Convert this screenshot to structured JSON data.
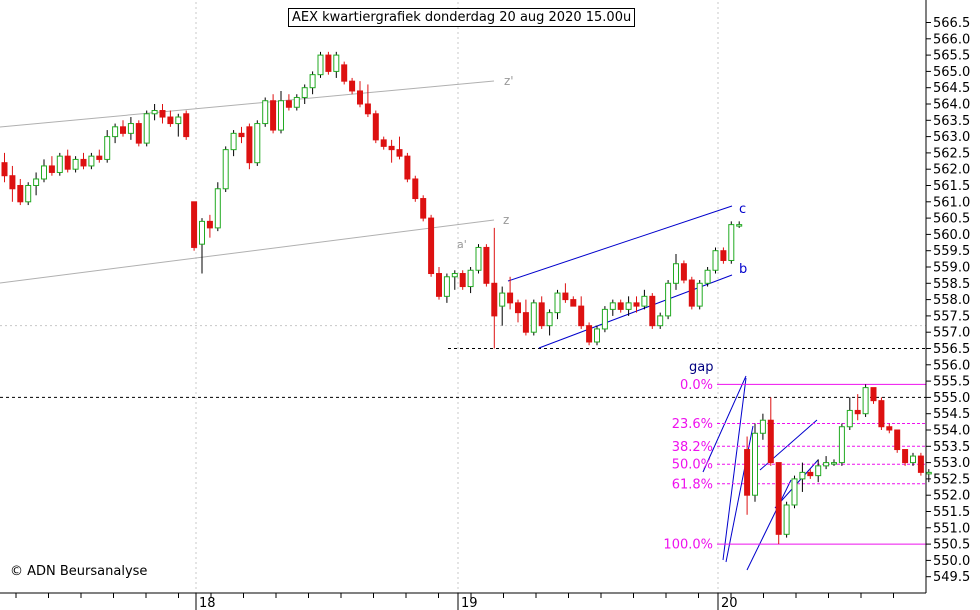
{
  "title": "AEX kwartiergrafiek donderdag 20 aug 2020 15.00u",
  "credit": "© ADN Beursanalyse",
  "colors": {
    "up": "#22aa22",
    "down": "#dd1111",
    "fib": "#ee11ee",
    "channel": "#0000cc",
    "trend": "#b0b0b0"
  },
  "chart_data": {
    "type": "candlestick",
    "title": "AEX kwartiergrafiek donderdag 20 aug 2020 15.00u",
    "y_axis": {
      "side": "right",
      "min": 549.0,
      "max": 567.0,
      "step": 0.5,
      "ticks": [
        "549.5",
        "550.0",
        "550.5",
        "551.0",
        "551.5",
        "552.0",
        "552.5",
        "553.0",
        "553.5",
        "554.0",
        "554.5",
        "555.0",
        "555.5",
        "556.0",
        "556.5",
        "557.0",
        "557.5",
        "558.0",
        "558.5",
        "559.0",
        "559.5",
        "560.0",
        "560.5",
        "561.0",
        "561.5",
        "562.0",
        "562.5",
        "563.0",
        "563.5",
        "564.0",
        "564.5",
        "565.0",
        "565.5",
        "566.0",
        "566.5"
      ]
    },
    "x_axis": {
      "labels": [
        "18",
        "19",
        "20"
      ]
    },
    "grid": true,
    "bars": [
      {
        "o": 562.2,
        "h": 562.5,
        "l": 561.6,
        "c": 561.8
      },
      {
        "o": 561.8,
        "h": 562.1,
        "l": 561.0,
        "c": 561.4
      },
      {
        "o": 561.5,
        "h": 561.7,
        "l": 560.9,
        "c": 561.0
      },
      {
        "o": 561.0,
        "h": 561.6,
        "l": 560.9,
        "c": 561.5
      },
      {
        "o": 561.5,
        "h": 561.9,
        "l": 561.2,
        "c": 561.7
      },
      {
        "o": 561.7,
        "h": 562.3,
        "l": 561.6,
        "c": 562.1
      },
      {
        "o": 562.1,
        "h": 562.4,
        "l": 561.8,
        "c": 561.9
      },
      {
        "o": 561.9,
        "h": 562.5,
        "l": 561.8,
        "c": 562.4
      },
      {
        "o": 562.4,
        "h": 562.6,
        "l": 561.9,
        "c": 562.0
      },
      {
        "o": 562.0,
        "h": 562.4,
        "l": 561.9,
        "c": 562.3
      },
      {
        "o": 562.3,
        "h": 562.5,
        "l": 562.0,
        "c": 562.1
      },
      {
        "o": 562.1,
        "h": 562.5,
        "l": 562.0,
        "c": 562.4
      },
      {
        "o": 562.4,
        "h": 562.6,
        "l": 562.2,
        "c": 562.3
      },
      {
        "o": 562.3,
        "h": 563.2,
        "l": 562.2,
        "c": 563.0
      },
      {
        "o": 563.0,
        "h": 563.4,
        "l": 562.8,
        "c": 563.3
      },
      {
        "o": 563.3,
        "h": 563.5,
        "l": 563.0,
        "c": 563.1
      },
      {
        "o": 563.1,
        "h": 563.6,
        "l": 562.9,
        "c": 563.4
      },
      {
        "o": 563.4,
        "h": 563.5,
        "l": 562.7,
        "c": 562.8
      },
      {
        "o": 562.8,
        "h": 563.8,
        "l": 562.7,
        "c": 563.7
      },
      {
        "o": 563.7,
        "h": 564.0,
        "l": 563.5,
        "c": 563.8
      },
      {
        "o": 563.8,
        "h": 564.0,
        "l": 563.4,
        "c": 563.6
      },
      {
        "o": 563.6,
        "h": 563.8,
        "l": 563.3,
        "c": 563.4
      },
      {
        "o": 563.4,
        "h": 563.7,
        "l": 563.0,
        "c": 563.6
      },
      {
        "o": 563.7,
        "h": 563.8,
        "l": 562.9,
        "c": 563.0
      },
      {
        "o": 561.0,
        "h": 561.0,
        "l": 559.5,
        "c": 559.6
      },
      {
        "o": 559.7,
        "h": 560.5,
        "l": 558.8,
        "c": 560.4
      },
      {
        "o": 560.4,
        "h": 560.6,
        "l": 559.9,
        "c": 560.2
      },
      {
        "o": 560.2,
        "h": 561.6,
        "l": 560.1,
        "c": 561.4
      },
      {
        "o": 561.4,
        "h": 562.7,
        "l": 561.3,
        "c": 562.6
      },
      {
        "o": 562.6,
        "h": 563.2,
        "l": 562.4,
        "c": 563.1
      },
      {
        "o": 563.1,
        "h": 563.3,
        "l": 562.8,
        "c": 563.0
      },
      {
        "o": 563.3,
        "h": 563.4,
        "l": 562.0,
        "c": 562.2
      },
      {
        "o": 562.2,
        "h": 563.5,
        "l": 562.1,
        "c": 563.4
      },
      {
        "o": 563.4,
        "h": 564.2,
        "l": 563.3,
        "c": 564.1
      },
      {
        "o": 564.1,
        "h": 564.3,
        "l": 563.1,
        "c": 563.2
      },
      {
        "o": 563.2,
        "h": 564.4,
        "l": 563.1,
        "c": 564.1
      },
      {
        "o": 564.1,
        "h": 564.3,
        "l": 563.8,
        "c": 563.9
      },
      {
        "o": 563.9,
        "h": 564.3,
        "l": 563.8,
        "c": 564.2
      },
      {
        "o": 564.2,
        "h": 564.6,
        "l": 564.0,
        "c": 564.5
      },
      {
        "o": 564.5,
        "h": 565.0,
        "l": 564.3,
        "c": 564.9
      },
      {
        "o": 564.9,
        "h": 565.6,
        "l": 564.8,
        "c": 565.5
      },
      {
        "o": 565.5,
        "h": 565.6,
        "l": 564.9,
        "c": 565.0
      },
      {
        "o": 565.0,
        "h": 565.6,
        "l": 564.8,
        "c": 565.5
      },
      {
        "o": 565.2,
        "h": 565.3,
        "l": 564.6,
        "c": 564.7
      },
      {
        "o": 564.7,
        "h": 564.8,
        "l": 564.3,
        "c": 564.4
      },
      {
        "o": 564.4,
        "h": 564.7,
        "l": 563.9,
        "c": 564.0
      },
      {
        "o": 564.0,
        "h": 564.6,
        "l": 563.6,
        "c": 563.7
      },
      {
        "o": 563.7,
        "h": 563.8,
        "l": 562.8,
        "c": 562.9
      },
      {
        "o": 562.9,
        "h": 563.0,
        "l": 562.6,
        "c": 562.7
      },
      {
        "o": 562.7,
        "h": 562.9,
        "l": 562.2,
        "c": 562.6
      },
      {
        "o": 562.6,
        "h": 563.0,
        "l": 562.3,
        "c": 562.4
      },
      {
        "o": 562.4,
        "h": 562.5,
        "l": 561.6,
        "c": 561.7
      },
      {
        "o": 561.7,
        "h": 561.8,
        "l": 561.0,
        "c": 561.1
      },
      {
        "o": 561.1,
        "h": 561.2,
        "l": 560.4,
        "c": 560.5
      },
      {
        "o": 560.5,
        "h": 560.6,
        "l": 558.7,
        "c": 558.8
      },
      {
        "o": 558.8,
        "h": 559.0,
        "l": 558.0,
        "c": 558.1
      },
      {
        "o": 558.1,
        "h": 558.8,
        "l": 557.9,
        "c": 558.7
      },
      {
        "o": 558.7,
        "h": 558.9,
        "l": 558.3,
        "c": 558.8
      },
      {
        "o": 558.8,
        "h": 558.9,
        "l": 558.3,
        "c": 558.4
      },
      {
        "o": 558.4,
        "h": 559.0,
        "l": 558.2,
        "c": 558.9
      },
      {
        "o": 558.9,
        "h": 559.7,
        "l": 558.8,
        "c": 559.6
      },
      {
        "o": 559.6,
        "h": 559.7,
        "l": 558.4,
        "c": 558.5
      },
      {
        "o": 558.5,
        "h": 560.2,
        "l": 556.5,
        "c": 557.5
      },
      {
        "o": 557.8,
        "h": 558.4,
        "l": 557.2,
        "c": 558.2
      },
      {
        "o": 558.2,
        "h": 558.7,
        "l": 557.7,
        "c": 557.9
      },
      {
        "o": 557.9,
        "h": 558.0,
        "l": 557.3,
        "c": 557.6
      },
      {
        "o": 557.6,
        "h": 558.0,
        "l": 556.9,
        "c": 557.0
      },
      {
        "o": 557.0,
        "h": 558.0,
        "l": 556.9,
        "c": 557.9
      },
      {
        "o": 557.9,
        "h": 558.1,
        "l": 557.1,
        "c": 557.2
      },
      {
        "o": 557.2,
        "h": 557.7,
        "l": 556.9,
        "c": 557.6
      },
      {
        "o": 557.6,
        "h": 558.3,
        "l": 557.4,
        "c": 558.2
      },
      {
        "o": 558.2,
        "h": 558.5,
        "l": 557.9,
        "c": 558.0
      },
      {
        "o": 558.0,
        "h": 558.1,
        "l": 557.8,
        "c": 557.8
      },
      {
        "o": 557.8,
        "h": 558.1,
        "l": 557.1,
        "c": 557.2
      },
      {
        "o": 557.2,
        "h": 557.3,
        "l": 556.6,
        "c": 556.7
      },
      {
        "o": 556.7,
        "h": 557.2,
        "l": 556.6,
        "c": 557.1
      },
      {
        "o": 557.1,
        "h": 557.8,
        "l": 557.0,
        "c": 557.7
      },
      {
        "o": 557.7,
        "h": 558.0,
        "l": 557.5,
        "c": 557.9
      },
      {
        "o": 557.9,
        "h": 558.0,
        "l": 557.6,
        "c": 557.7
      },
      {
        "o": 557.7,
        "h": 558.1,
        "l": 557.5,
        "c": 557.9
      },
      {
        "o": 557.9,
        "h": 558.1,
        "l": 557.6,
        "c": 557.8
      },
      {
        "o": 557.8,
        "h": 558.3,
        "l": 557.7,
        "c": 558.1
      },
      {
        "o": 558.1,
        "h": 558.2,
        "l": 557.1,
        "c": 557.2
      },
      {
        "o": 557.2,
        "h": 557.6,
        "l": 557.1,
        "c": 557.5
      },
      {
        "o": 557.5,
        "h": 558.6,
        "l": 557.4,
        "c": 558.5
      },
      {
        "o": 558.5,
        "h": 559.4,
        "l": 558.3,
        "c": 559.1
      },
      {
        "o": 559.1,
        "h": 559.2,
        "l": 558.5,
        "c": 558.6
      },
      {
        "o": 558.6,
        "h": 558.7,
        "l": 557.7,
        "c": 557.8
      },
      {
        "o": 557.8,
        "h": 558.6,
        "l": 557.7,
        "c": 558.5
      },
      {
        "o": 558.5,
        "h": 559.0,
        "l": 558.4,
        "c": 558.9
      },
      {
        "o": 558.9,
        "h": 559.6,
        "l": 558.8,
        "c": 559.5
      },
      {
        "o": 559.5,
        "h": 559.6,
        "l": 559.1,
        "c": 559.2
      },
      {
        "o": 559.2,
        "h": 560.4,
        "l": 559.1,
        "c": 560.3
      },
      {
        "o": 560.3,
        "h": 560.4,
        "l": 560.2,
        "c": 560.3
      },
      {
        "o": 553.4,
        "h": 553.8,
        "l": 551.4,
        "c": 552.0
      },
      {
        "o": 552.0,
        "h": 554.2,
        "l": 551.8,
        "c": 553.9
      },
      {
        "o": 553.9,
        "h": 554.5,
        "l": 553.7,
        "c": 554.3
      },
      {
        "o": 554.3,
        "h": 555.0,
        "l": 552.9,
        "c": 553.0
      },
      {
        "o": 553.0,
        "h": 553.0,
        "l": 550.5,
        "c": 550.8
      },
      {
        "o": 550.8,
        "h": 551.8,
        "l": 550.7,
        "c": 551.7
      },
      {
        "o": 551.7,
        "h": 552.6,
        "l": 551.6,
        "c": 552.5
      },
      {
        "o": 552.5,
        "h": 553.0,
        "l": 552.1,
        "c": 552.7
      },
      {
        "o": 552.7,
        "h": 552.8,
        "l": 552.5,
        "c": 552.6
      },
      {
        "o": 552.6,
        "h": 553.1,
        "l": 552.4,
        "c": 552.9
      },
      {
        "o": 552.9,
        "h": 553.2,
        "l": 552.8,
        "c": 553.0
      },
      {
        "o": 553.0,
        "h": 553.1,
        "l": 552.9,
        "c": 553.0
      },
      {
        "o": 553.0,
        "h": 554.2,
        "l": 552.9,
        "c": 554.1
      },
      {
        "o": 554.1,
        "h": 555.0,
        "l": 554.0,
        "c": 554.6
      },
      {
        "o": 554.6,
        "h": 555.1,
        "l": 554.3,
        "c": 554.5
      },
      {
        "o": 554.5,
        "h": 555.4,
        "l": 554.4,
        "c": 555.3
      },
      {
        "o": 555.3,
        "h": 555.3,
        "l": 554.8,
        "c": 554.9
      },
      {
        "o": 554.9,
        "h": 555.0,
        "l": 554.0,
        "c": 554.1
      },
      {
        "o": 554.1,
        "h": 554.2,
        "l": 553.9,
        "c": 554.0
      },
      {
        "o": 554.0,
        "h": 554.0,
        "l": 553.3,
        "c": 553.4
      },
      {
        "o": 553.4,
        "h": 553.4,
        "l": 552.9,
        "c": 553.0
      },
      {
        "o": 553.0,
        "h": 553.3,
        "l": 552.9,
        "c": 553.2
      },
      {
        "o": 553.2,
        "h": 553.3,
        "l": 552.6,
        "c": 552.7
      },
      {
        "o": 552.7,
        "h": 552.8,
        "l": 552.4,
        "c": 552.7
      }
    ],
    "horizontal_lines": [
      {
        "value": 556.5,
        "style": "dashed"
      },
      {
        "value": 555.0,
        "style": "dashed"
      }
    ],
    "fibonacci": [
      {
        "label": "0.0%",
        "value": 555.4
      },
      {
        "label": "23.6%",
        "value": 554.2
      },
      {
        "label": "38.2%",
        "value": 553.5
      },
      {
        "label": "50.0%",
        "value": 552.95
      },
      {
        "label": "61.8%",
        "value": 552.35
      },
      {
        "label": "100.0%",
        "value": 550.5
      }
    ],
    "annotations": [
      "z'",
      "z",
      "a'",
      "c",
      "b",
      "gap"
    ]
  }
}
